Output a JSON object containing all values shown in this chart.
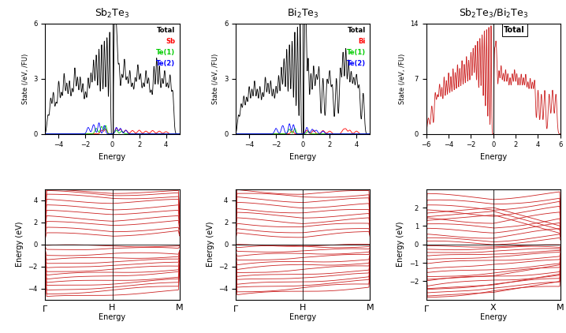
{
  "dos1_ylim": [
    0,
    6
  ],
  "dos2_ylim": [
    0,
    6
  ],
  "dos3_ylim": [
    0,
    14
  ],
  "dos1_xlim": [
    -5,
    5
  ],
  "dos2_xlim": [
    -5,
    5
  ],
  "dos3_xlim": [
    -6,
    6
  ],
  "band1_ylim": [
    -5,
    5
  ],
  "band2_ylim": [
    -5,
    5
  ],
  "band3_ylim": [
    -3,
    3
  ],
  "color_total": "#000000",
  "color_sb": "#ff0000",
  "color_bi": "#ff0000",
  "color_te1": "#00cc00",
  "color_te2": "#0000ff",
  "color_band": "#cc2222",
  "ylabel_dos": "State (/eV, /FU)",
  "ylabel_band": "Energy (eV)",
  "xlabel": "Energy"
}
